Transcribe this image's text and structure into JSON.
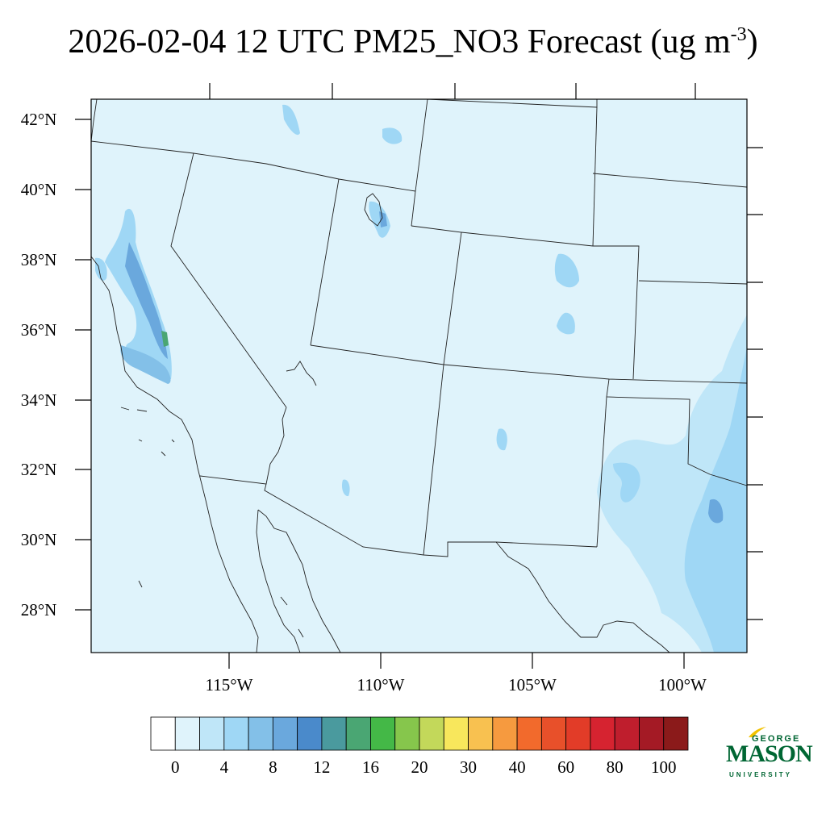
{
  "title": {
    "main": "2026-02-04 12 UTC PM25_NO3 Forecast (ug m",
    "sup": "-3",
    "close": ")"
  },
  "map": {
    "lat_ticks": [
      "42°N",
      "40°N",
      "38°N",
      "36°N",
      "34°N",
      "32°N",
      "30°N",
      "28°N"
    ],
    "lon_ticks": [
      "115°W",
      "110°W",
      "105°W",
      "100°W"
    ],
    "background_fill_color": "#dff3fb"
  },
  "colorbar": {
    "colors": [
      "#ffffff",
      "#dff3fb",
      "#bfe6f8",
      "#9fd7f5",
      "#83c0e8",
      "#6aa8dd",
      "#4a8acb",
      "#4a9a9e",
      "#4aa673",
      "#44b847",
      "#86c64c",
      "#c3d85a",
      "#f8e75c",
      "#f8c150",
      "#f69a3f",
      "#f26a2c",
      "#e8502a",
      "#e23c28",
      "#d62330",
      "#bf1e2d",
      "#a41a25",
      "#8b1a1a"
    ],
    "labels": [
      "0",
      "4",
      "8",
      "12",
      "16",
      "20",
      "30",
      "40",
      "60",
      "80",
      "100"
    ]
  },
  "logo": {
    "line1": "GEORGE",
    "line2": "MASON",
    "line3": "UNIVERSITY",
    "color": "#006633",
    "accent": "#f2c200"
  }
}
